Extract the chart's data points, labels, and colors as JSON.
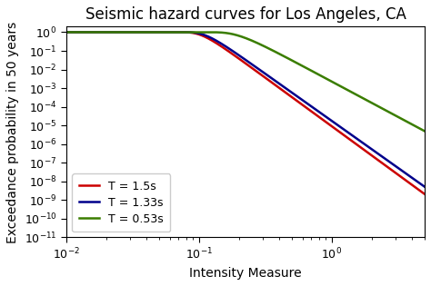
{
  "title": "Seismic hazard curves for Los Angeles, CA",
  "xlabel": "Intensity Measure",
  "ylabel": "Exceedance probability in 50 years",
  "xlim": [
    0.01,
    5.0
  ],
  "ylim": [
    1e-11,
    2.0
  ],
  "curves": [
    {
      "label": "T = 1.5s",
      "color": "#cc0000",
      "mu_ln": -2.0,
      "sigma_ln": 0.55,
      "k": 4.5,
      "k0": 1.5
    },
    {
      "label": "T = 1.33s",
      "color": "#00008b",
      "mu_ln": -2.05,
      "sigma_ln": 0.55,
      "k": 4.3,
      "k0": 1.4
    },
    {
      "label": "T = 0.53s",
      "color": "#3a7d00",
      "mu_ln": -1.0,
      "sigma_ln": 0.65,
      "k": 3.0,
      "k0": 2.5
    }
  ],
  "legend_loc": "lower left",
  "linewidth": 1.8,
  "title_fontsize": 12,
  "label_fontsize": 10,
  "legend_fontsize": 9,
  "tick_fontsize": 9
}
